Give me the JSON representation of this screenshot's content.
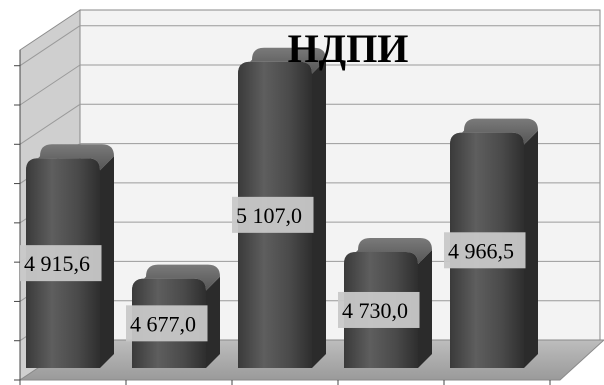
{
  "chart_data": {
    "type": "bar",
    "title": "НДПИ",
    "categories": [
      "",
      "",
      "",
      "",
      ""
    ],
    "values": [
      4915.6,
      4677.0,
      5107.0,
      4730.0,
      4966.5
    ],
    "data_labels": [
      "4 915,6",
      "4 677,0",
      "5 107,0",
      "4 730,0",
      "4 966,5"
    ],
    "ylim": [
      4500,
      5150
    ],
    "grid": true,
    "legend": "none",
    "bar_color": "#4a4a4a",
    "wall_color": "#f3f3f3",
    "floor_color": "#a6a6a6",
    "label_bg": "#c8c8c8"
  }
}
